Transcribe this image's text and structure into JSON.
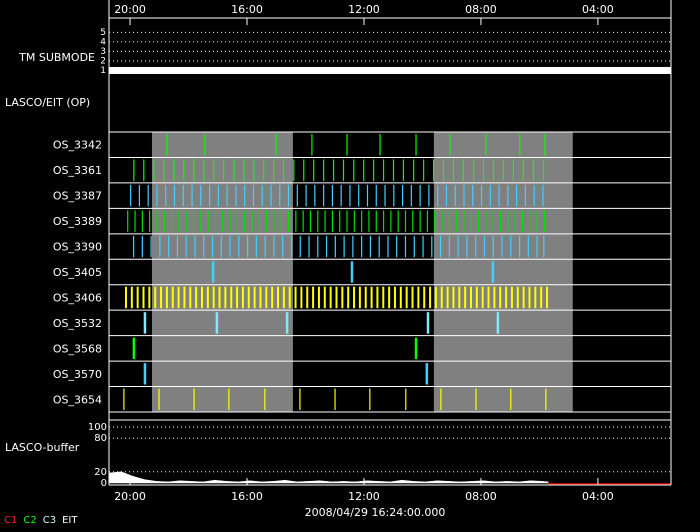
{
  "chart_data": {
    "type": "timeline",
    "xlim": [
      20.72,
      1.5
    ],
    "xticks": [
      {
        "value": 20,
        "label": "20:00"
      },
      {
        "value": 16,
        "label": "16:00"
      },
      {
        "value": 12,
        "label": "12:00"
      },
      {
        "value": 8,
        "label": "08:00"
      },
      {
        "value": 4,
        "label": "04:00"
      }
    ],
    "timestamp": "2008/04/29 16:24:00.000",
    "shaded": [
      [
        19.25,
        14.43
      ],
      [
        9.61,
        4.86
      ]
    ],
    "submode": {
      "label": "TM SUBMODE",
      "ylim": [
        0,
        6.4
      ],
      "yticks": [
        5,
        4,
        3,
        2,
        1
      ],
      "value": 1
    },
    "section_label": "LASCO/EIT (OP)",
    "rows": [
      {
        "name": "OS_3342",
        "color": "#00ff00",
        "x": [
          18.74,
          17.44,
          15.01,
          13.78,
          12.58,
          11.45,
          10.22,
          9.06,
          7.83,
          6.67,
          5.81
        ]
      },
      {
        "name": "OS_3361",
        "color": "#00ff00",
        "x": [
          19.87,
          19.53,
          19.19,
          18.85,
          18.5,
          18.16,
          17.82,
          17.48,
          17.14,
          16.8,
          16.45,
          16.11,
          15.77,
          15.43,
          15.09,
          14.75,
          14.4,
          14.06,
          13.72,
          13.38,
          13.04,
          12.7,
          12.35,
          12.01,
          11.67,
          11.33,
          10.99,
          10.65,
          10.3,
          9.96,
          9.62,
          9.28,
          8.94,
          8.6,
          8.25,
          7.91,
          7.57,
          7.23,
          6.89,
          6.55,
          6.2,
          5.86
        ]
      },
      {
        "name": "OS_3387",
        "color": "#40d0ff",
        "x": [
          19.98,
          19.68,
          19.38,
          19.08,
          18.78,
          18.48,
          18.18,
          17.88,
          17.58,
          17.28,
          16.98,
          16.68,
          16.38,
          16.08,
          15.78,
          15.48,
          15.18,
          14.88,
          14.58,
          14.28,
          13.98,
          13.68,
          13.38,
          13.08,
          12.78,
          12.48,
          12.18,
          11.88,
          11.58,
          11.28,
          10.98,
          10.68,
          10.38,
          10.08,
          9.78,
          9.48,
          9.18,
          8.88,
          8.58,
          8.28,
          7.98,
          7.68,
          7.38,
          7.08,
          6.78,
          6.48,
          6.18,
          5.88
        ]
      },
      {
        "name": "OS_3389",
        "color": "#00e000",
        "x": [
          20.08,
          19.83,
          19.58,
          19.33,
          19.08,
          18.83,
          18.58,
          18.33,
          18.08,
          17.83,
          17.58,
          17.33,
          17.08,
          16.83,
          16.58,
          16.33,
          16.08,
          15.83,
          15.58,
          15.33,
          15.08,
          14.83,
          14.58,
          14.33,
          14.08,
          13.83,
          13.58,
          13.33,
          13.08,
          12.83,
          12.58,
          12.33,
          12.08,
          11.83,
          11.58,
          11.33,
          11.08,
          10.83,
          10.58,
          10.33,
          10.08,
          9.83,
          9.58,
          9.33,
          9.08,
          8.83,
          8.58,
          8.33,
          8.08,
          7.83,
          7.58,
          7.33,
          7.08,
          6.83,
          6.58,
          6.33,
          6.08,
          5.83
        ]
      },
      {
        "name": "OS_3390",
        "color": "#40d0ff",
        "x": [
          19.88,
          19.58,
          19.28,
          18.98,
          18.68,
          18.38,
          18.08,
          17.78,
          17.48,
          17.18,
          16.88,
          16.58,
          16.28,
          15.98,
          15.68,
          15.38,
          15.08,
          14.78,
          14.48,
          14.18,
          13.88,
          13.58,
          13.28,
          12.98,
          12.68,
          12.38,
          12.08,
          11.78,
          11.48,
          11.18,
          10.88,
          10.58,
          10.28,
          9.98,
          9.68,
          9.38,
          9.08,
          8.78,
          8.48,
          8.18,
          7.88,
          7.58,
          7.28,
          6.98,
          6.68,
          6.38,
          6.08,
          5.85
        ]
      },
      {
        "name": "OS_3405",
        "color": "#40d0ff",
        "x": [
          17.16,
          12.41,
          7.59
        ]
      },
      {
        "name": "OS_3406",
        "color": "#ffff00",
        "x": [
          20.14,
          19.94,
          19.74,
          19.54,
          19.34,
          19.14,
          18.94,
          18.74,
          18.54,
          18.34,
          18.14,
          17.94,
          17.74,
          17.54,
          17.34,
          17.14,
          16.94,
          16.74,
          16.54,
          16.34,
          16.14,
          15.94,
          15.74,
          15.54,
          15.34,
          15.14,
          14.94,
          14.74,
          14.54,
          14.34,
          14.14,
          13.94,
          13.74,
          13.54,
          13.34,
          13.14,
          12.94,
          12.74,
          12.54,
          12.34,
          12.14,
          11.94,
          11.74,
          11.54,
          11.34,
          11.14,
          10.94,
          10.74,
          10.54,
          10.34,
          10.14,
          9.94,
          9.74,
          9.54,
          9.34,
          9.14,
          8.94,
          8.74,
          8.54,
          8.34,
          8.14,
          7.94,
          7.74,
          7.54,
          7.34,
          7.14,
          6.94,
          6.74,
          6.54,
          6.34,
          6.14,
          5.94,
          5.74
        ]
      },
      {
        "name": "OS_3532",
        "color": "#80e8ff",
        "x": [
          19.49,
          17.03,
          14.63,
          9.81,
          7.42
        ]
      },
      {
        "name": "OS_3568",
        "color": "#00ff00",
        "x": [
          19.87,
          10.22
        ]
      },
      {
        "name": "OS_3570",
        "color": "#40d0ff",
        "x": [
          19.49,
          9.85
        ]
      },
      {
        "name": "OS_3654",
        "color": "#ffff00",
        "x": [
          20.21,
          19.01,
          17.81,
          16.62,
          15.39,
          14.19,
          12.99,
          11.8,
          10.57,
          9.37,
          8.17,
          6.98,
          5.78
        ]
      }
    ],
    "buffer": {
      "label": "LASCO-buffer",
      "ylim": [
        0,
        100
      ],
      "yticks": [
        100,
        80,
        20,
        0
      ],
      "x": [
        20.7,
        20.3,
        19.9,
        19.5,
        19.1,
        18.7,
        18.3,
        17.9,
        17.5,
        17.1,
        16.7,
        16.3,
        15.9,
        15.5,
        15.1,
        14.7,
        14.3,
        13.9,
        13.5,
        13.1,
        12.7,
        12.3,
        11.9,
        11.5,
        11.1,
        10.7,
        10.3,
        9.9,
        9.5,
        9.1,
        8.7,
        8.3,
        7.9,
        7.5,
        7.1,
        6.7,
        6.3,
        5.9,
        5.7
      ],
      "values": [
        18,
        20,
        12,
        6,
        3,
        2,
        4,
        3,
        2,
        5,
        3,
        2,
        4,
        2,
        3,
        5,
        2,
        3,
        4,
        2,
        3,
        2,
        4,
        3,
        2,
        5,
        3,
        2,
        4,
        3,
        2,
        3,
        4,
        2,
        3,
        2,
        4,
        3,
        2
      ]
    },
    "legend": [
      {
        "name": "C1",
        "color": "#ff2020"
      },
      {
        "name": "C2",
        "color": "#00ff00"
      },
      {
        "name": "C3",
        "color": "#c8ffff"
      },
      {
        "name": "EIT",
        "color": "#ffffff"
      }
    ]
  }
}
